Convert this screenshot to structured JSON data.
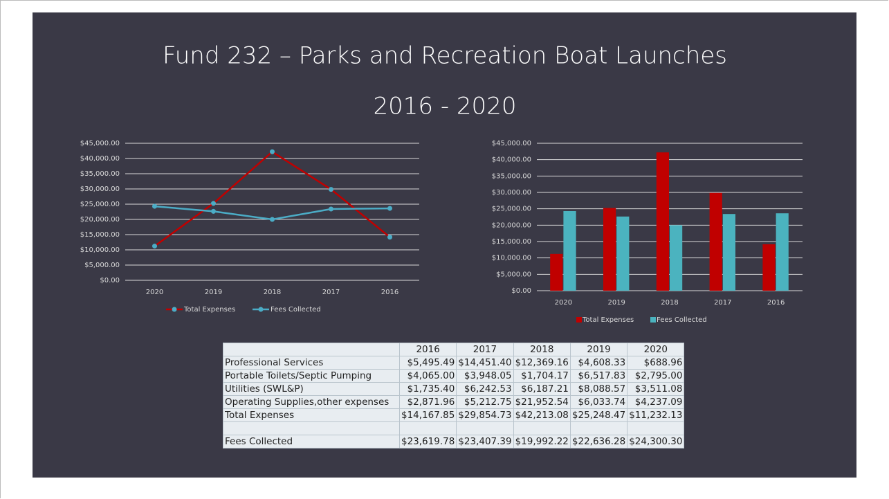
{
  "title": "Fund 232 – Parks and Recreation Boat Launches",
  "subtitle": "2016 - 2020",
  "chart_data": [
    {
      "type": "line",
      "categories": [
        "2020",
        "2019",
        "2018",
        "2017",
        "2016"
      ],
      "series": [
        {
          "name": "Total Expenses",
          "color": "#c00000",
          "values": [
            11232.13,
            25248.47,
            42213.08,
            29854.73,
            14167.85
          ]
        },
        {
          "name": "Fees Collected",
          "color": "#4bacc6",
          "values": [
            24300.3,
            22636.28,
            19992.22,
            23407.39,
            23619.78
          ]
        }
      ],
      "ylim": [
        0,
        45000
      ],
      "yticks": [
        {
          "value": 0,
          "label": "$0.00"
        },
        {
          "value": 5000,
          "label": "$5,000.00"
        },
        {
          "value": 10000,
          "label": "$10,000.00"
        },
        {
          "value": 15000,
          "label": "$15,000.00"
        },
        {
          "value": 20000,
          "label": "$20,000.00"
        },
        {
          "value": 25000,
          "label": "$25,000.00"
        },
        {
          "value": 30000,
          "label": "$30,000.00"
        },
        {
          "value": 35000,
          "label": "$35,000.00"
        },
        {
          "value": 40000,
          "label": "$40,000.00"
        },
        {
          "value": 45000,
          "label": "$45,000.00"
        }
      ],
      "grid": true,
      "legend": "bottom"
    },
    {
      "type": "bar",
      "categories": [
        "2020",
        "2019",
        "2018",
        "2017",
        "2016"
      ],
      "series": [
        {
          "name": "Total Expenses",
          "color": "#c00000",
          "values": [
            11232.13,
            25248.47,
            42213.08,
            29854.73,
            14167.85
          ]
        },
        {
          "name": "Fees Collected",
          "color": "#4bb3bf",
          "values": [
            24300.3,
            22636.28,
            19992.22,
            23407.39,
            23619.78
          ]
        }
      ],
      "ylim": [
        0,
        45000
      ],
      "yticks": [
        {
          "value": 0,
          "label": "$0.00"
        },
        {
          "value": 5000,
          "label": "$5,000.00"
        },
        {
          "value": 10000,
          "label": "$10,000.00"
        },
        {
          "value": 15000,
          "label": "$15,000.00"
        },
        {
          "value": 20000,
          "label": "$20,000.00"
        },
        {
          "value": 25000,
          "label": "$25,000.00"
        },
        {
          "value": 30000,
          "label": "$30,000.00"
        },
        {
          "value": 35000,
          "label": "$35,000.00"
        },
        {
          "value": 40000,
          "label": "$40,000.00"
        },
        {
          "value": 45000,
          "label": "$45,000.00"
        }
      ],
      "grid": true,
      "legend": "bottom"
    }
  ],
  "table": {
    "columns": [
      "2016",
      "2017",
      "2018",
      "2019",
      "2020"
    ],
    "rows": [
      {
        "label": "Professional Services",
        "cells": [
          "$5,495.49",
          "$14,451.40",
          "$12,369.16",
          "$4,608.33",
          "$688.96"
        ]
      },
      {
        "label": "Portable Toilets/Septic Pumping",
        "cells": [
          "$4,065.00",
          "$3,948.05",
          "$1,704.17",
          "$6,517.83",
          "$2,795.00"
        ]
      },
      {
        "label": "Utilities (SWL&P)",
        "cells": [
          "$1,735.40",
          "$6,242.53",
          "$6,187.21",
          "$8,088.57",
          "$3,511.08"
        ]
      },
      {
        "label": "Operating Supplies,other expenses",
        "cells": [
          "$2,871.96",
          "$5,212.75",
          "$21,952.54",
          "$6,033.74",
          "$4,237.09"
        ]
      },
      {
        "label": "Total Expenses",
        "cells": [
          "$14,167.85",
          "$29,854.73",
          "$42,213.08",
          "$25,248.47",
          "$11,232.13"
        ]
      },
      {
        "label": "Fees Collected",
        "cells": [
          "$23,619.78",
          "$23,407.39",
          "$19,992.22",
          "$22,636.28",
          "$24,300.30"
        ]
      }
    ]
  }
}
